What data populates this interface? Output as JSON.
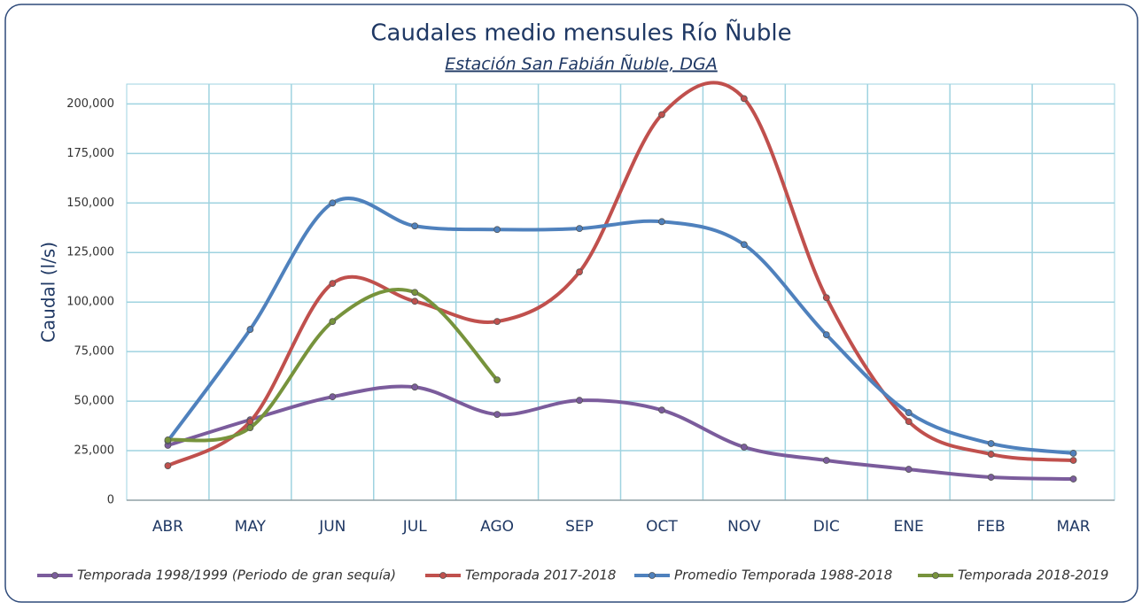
{
  "chart_data": {
    "type": "line",
    "title": "Caudales medio mensules Río Ñuble",
    "subtitle": "Estación San Fabián Ñuble, DGA",
    "y_label": "Caudal (l/s)",
    "categories": [
      "ABR",
      "MAY",
      "JUN",
      "JUL",
      "AGO",
      "SEP",
      "OCT",
      "NOV",
      "DIC",
      "ENE",
      "FEB",
      "MAR"
    ],
    "series": [
      {
        "name": "Temporada 1998/1999 (Periodo de gran sequía)",
        "color": "#7b5c9c",
        "values": [
          27700,
          40600,
          52200,
          57100,
          43300,
          50400,
          45500,
          26800,
          20100,
          15600,
          11600,
          10700
        ]
      },
      {
        "name": "Temporada 2017-2018",
        "color": "#c0504d",
        "values": [
          17400,
          39700,
          109400,
          100400,
          90200,
          115200,
          194600,
          202700,
          102200,
          39700,
          23200,
          20100
        ]
      },
      {
        "name": "Promedio Temporada 1988-2018",
        "color": "#4f81bd",
        "values": [
          29900,
          86200,
          150000,
          138400,
          136600,
          137100,
          140600,
          129000,
          83500,
          44200,
          28600,
          23700
        ]
      },
      {
        "name": "Temporada 2018-2019",
        "color": "#77933c",
        "values": [
          30400,
          36600,
          90200,
          104900,
          60700,
          null,
          null,
          null,
          null,
          null,
          null,
          null
        ]
      }
    ],
    "ylim": [
      0,
      210000
    ],
    "yticks": [
      0,
      {
        "value": 25000,
        "label": "25,000"
      },
      {
        "value": 50000,
        "label": "50,000"
      },
      {
        "value": 75000,
        "label": "75,000"
      },
      {
        "value": 100000,
        "label": "100,000"
      },
      {
        "value": 125000,
        "label": "125,000"
      },
      {
        "value": 150000,
        "label": "150,000"
      },
      {
        "value": 175000,
        "label": "175,000"
      },
      {
        "value": 200000,
        "label": "200,000"
      }
    ],
    "grid": true
  }
}
